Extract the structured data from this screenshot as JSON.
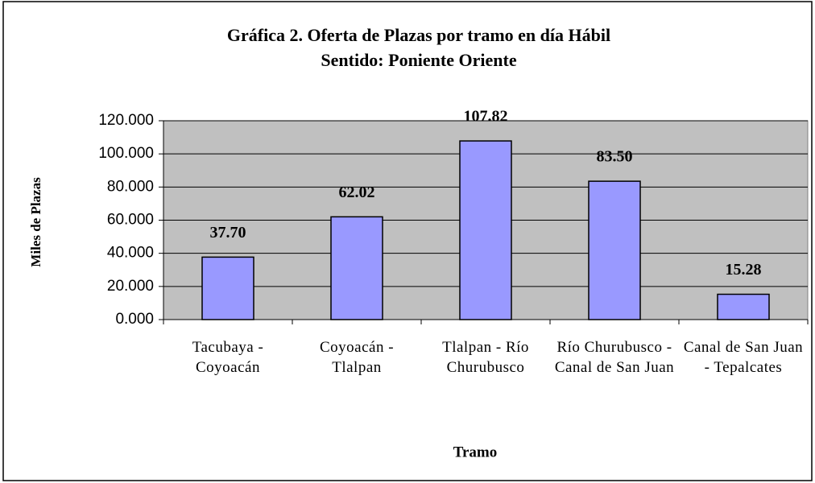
{
  "chart_data": {
    "type": "bar",
    "title": "Gráfica 2. Oferta de Plazas por tramo en día Hábil",
    "subtitle": "Sentido: Poniente Oriente",
    "x_label": "Tramo",
    "y_label": "Miles de Plazas",
    "categories": [
      "Tacubaya - Coyoacán",
      "Coyoacán - Tlalpan",
      "Tlalpan - Río Churubusco",
      "Río Churubusco - Canal de San Juan",
      "Canal de San Juan - Tepalcates"
    ],
    "values": [
      37.7,
      62.02,
      107.82,
      83.5,
      15.28
    ],
    "value_labels": [
      "37.70",
      "62.02",
      "107.82",
      "83.50",
      "15.28"
    ],
    "color": "#9999ff",
    "ylim": [
      0,
      120
    ],
    "yticks": [
      {
        "value": 0,
        "label": "0.000"
      },
      {
        "value": 20,
        "label": "20.000"
      },
      {
        "value": 40,
        "label": "40.000"
      },
      {
        "value": 60,
        "label": "60.000"
      },
      {
        "value": 80,
        "label": "80.000"
      },
      {
        "value": 100,
        "label": "100.000"
      },
      {
        "value": 120,
        "label": "120.000"
      }
    ],
    "grid": true,
    "plot_background": "#c0c0c0"
  }
}
